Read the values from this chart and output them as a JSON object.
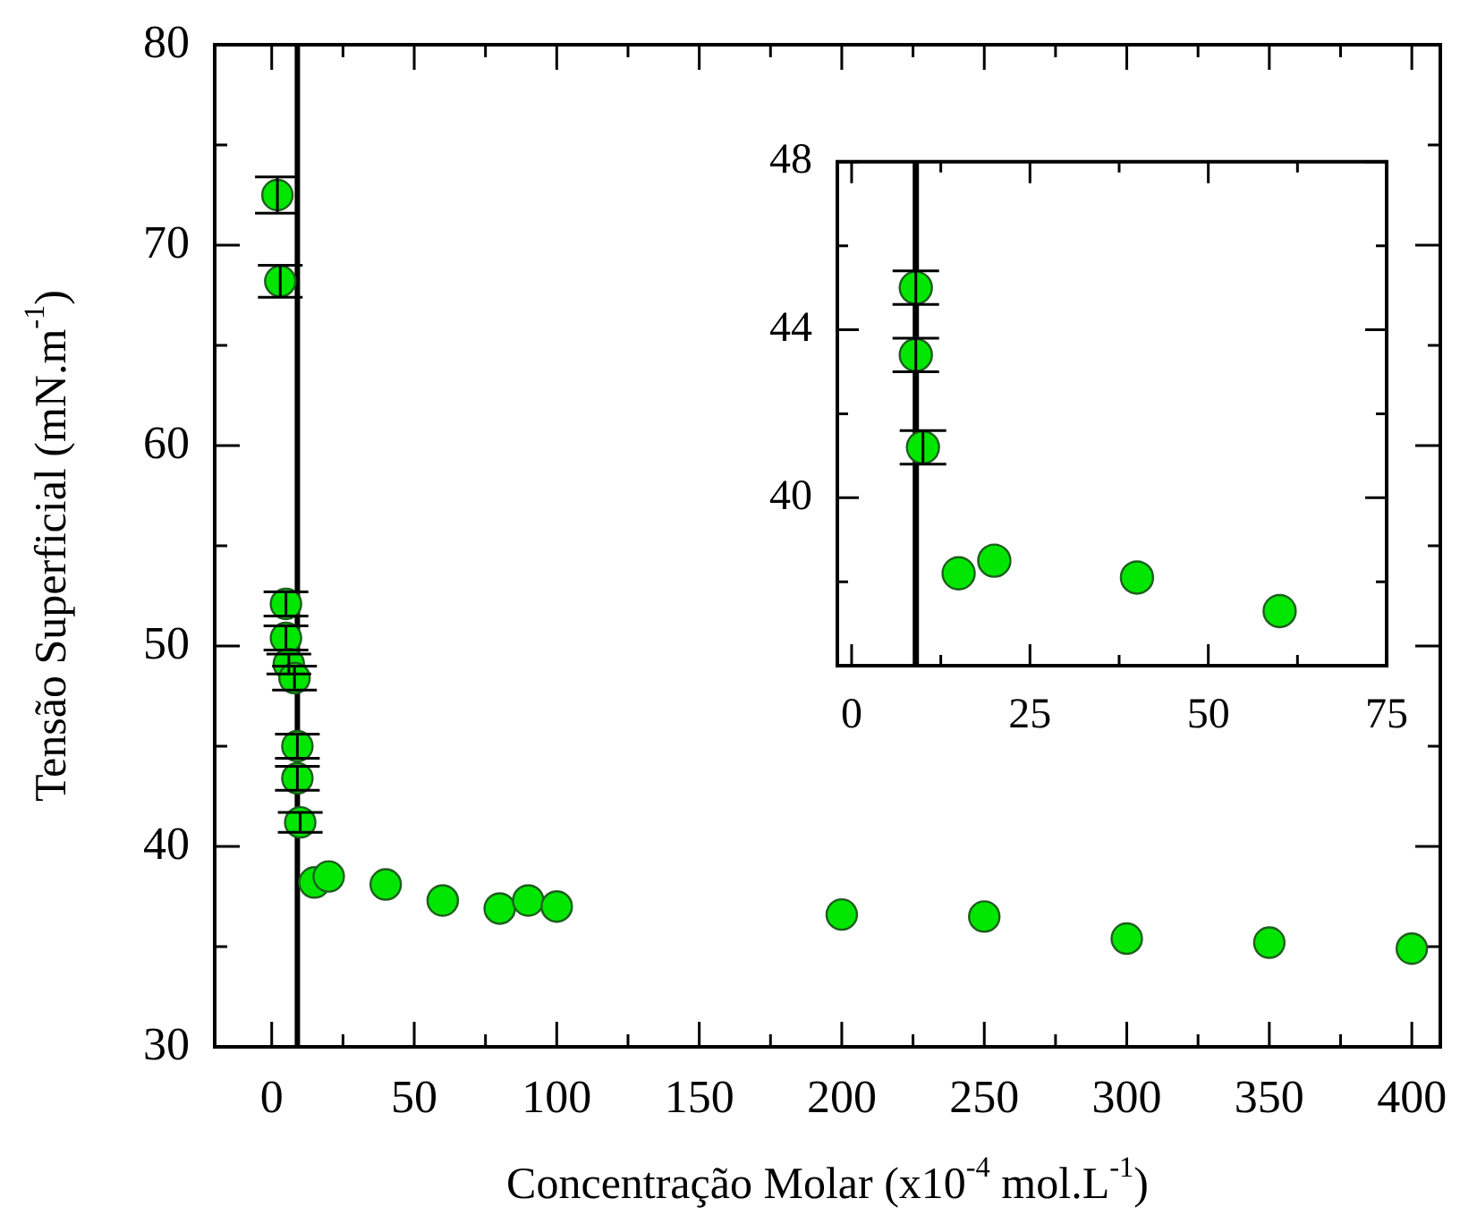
{
  "chart_data": [
    {
      "type": "scatter",
      "xlabel": "Concentração Molar (x10$^{-4}$ mol.L$^{-1}$)",
      "ylabel": "Tensão Superficial (mN.m$^{-1}$)",
      "marker": "circle",
      "x": [
        2,
        3,
        5,
        5,
        6,
        8,
        9,
        9,
        10,
        15,
        20,
        40,
        60,
        80,
        90,
        100,
        200,
        250,
        300,
        350,
        400
      ],
      "series": [
        {
          "color": "#00e600",
          "values": [
            72.5,
            68.2,
            52.1,
            50.4,
            49.1,
            48.4,
            45,
            43.4,
            41.2,
            38.2,
            38.5,
            38.1,
            37.3,
            36.9,
            37.3,
            37,
            36.6,
            36.5,
            35.4,
            35.2,
            34.9
          ],
          "errors": [
            0.9,
            0.8,
            0.6,
            0.6,
            0.5,
            0.6,
            0.6,
            0.6,
            0.5,
            null,
            null,
            null,
            null,
            null,
            null,
            null,
            null,
            null,
            null,
            null,
            null
          ]
        }
      ],
      "xlim": [
        -20,
        410
      ],
      "xticks": [
        0,
        {
          "value": 25,
          "label": null
        },
        50,
        {
          "value": 75,
          "label": null
        },
        100,
        {
          "value": 125,
          "label": null
        },
        150,
        {
          "value": 175,
          "label": null
        },
        200,
        {
          "value": 225,
          "label": null
        },
        250,
        {
          "value": 275,
          "label": null
        },
        300,
        {
          "value": 325,
          "label": null
        },
        350,
        {
          "value": 375,
          "label": null
        },
        400
      ],
      "ylim": [
        30,
        80
      ],
      "yticks": [
        30,
        {
          "value": 35,
          "label": null
        },
        40,
        {
          "value": 45,
          "label": null
        },
        50,
        {
          "value": 55,
          "label": null
        },
        60,
        {
          "value": 65,
          "label": null
        },
        70,
        {
          "value": 75,
          "label": null
        },
        80
      ],
      "ref_lines": [
        {
          "axis": "x",
          "value": 9
        }
      ]
    },
    {
      "type": "scatter",
      "marker": "circle",
      "x": [
        9,
        9,
        10,
        15,
        20,
        40,
        60
      ],
      "series": [
        {
          "color": "#00e600",
          "values": [
            45,
            43.4,
            41.2,
            38.2,
            38.5,
            38.1,
            37.3
          ],
          "errors": [
            0.4,
            0.4,
            0.4,
            null,
            null,
            null,
            null
          ]
        }
      ],
      "xlim": [
        -2,
        75
      ],
      "xticks": [
        0,
        {
          "value": 12.5,
          "label": null
        },
        25,
        {
          "value": 37.5,
          "label": null
        },
        50,
        {
          "value": 62.5,
          "label": null
        },
        75
      ],
      "ylim": [
        36,
        48
      ],
      "yticks": [
        {
          "value": 38,
          "label": null
        },
        40,
        {
          "value": 42,
          "label": null
        },
        44,
        {
          "value": 46,
          "label": null
        },
        48
      ],
      "ref_lines": [
        {
          "axis": "x",
          "value": 9
        }
      ]
    }
  ]
}
